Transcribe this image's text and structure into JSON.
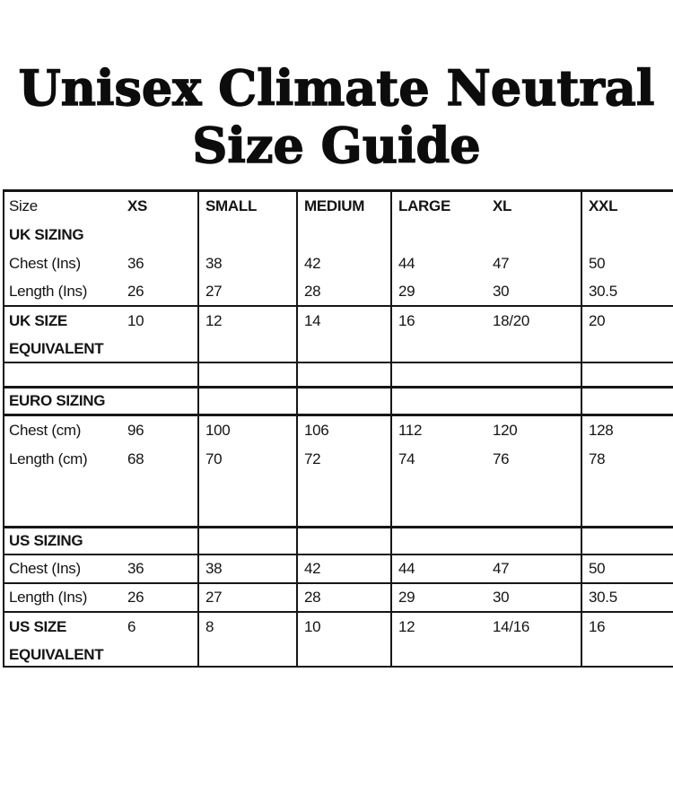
{
  "title": {
    "line1": "Unisex Climate Neutral",
    "line2": "Size Guide"
  },
  "table": {
    "columns": [
      "Size label",
      "XS",
      "SMALL",
      "MEDIUM",
      "LARGE",
      "XL",
      "XXL"
    ],
    "rows": [
      {
        "l1": "Size",
        "l2": "",
        "v": [
          "XS",
          "SMALL",
          "MEDIUM",
          "LARGE",
          "XL",
          "XXL"
        ]
      },
      {
        "l1": "UK SIZING",
        "l2": "",
        "v": [
          "",
          "",
          "",
          "",
          "",
          ""
        ]
      },
      {
        "l1": "Chest (Ins)",
        "l2": "",
        "v": [
          "36",
          "38",
          "42",
          "44",
          "47",
          "50"
        ]
      },
      {
        "l1": "Length (Ins)",
        "l2": "",
        "v": [
          "26",
          "27",
          "28",
          "29",
          "30",
          "30.5"
        ]
      },
      {
        "l1": "UK SIZE",
        "l2": "EQUIVALENT",
        "v": [
          "10",
          "12",
          "14",
          "16",
          "18/20",
          "20"
        ]
      },
      {
        "l1": "",
        "l2": "",
        "v": [
          "",
          "",
          "",
          "",
          "",
          ""
        ]
      },
      {
        "l1": "EURO SIZING",
        "l2": "",
        "v": [
          "",
          "",
          "",
          "",
          "",
          ""
        ]
      },
      {
        "l1": "Chest (cm)",
        "l2": "",
        "v": [
          "96",
          "100",
          "106",
          "112",
          "120",
          "128"
        ]
      },
      {
        "l1": "Length (cm)",
        "l2": "",
        "v": [
          "68",
          "70",
          "72",
          "74",
          "76",
          "78"
        ]
      },
      {
        "l1": "",
        "l2": "",
        "v": [
          "",
          "",
          "",
          "",
          "",
          ""
        ]
      },
      {
        "l1": "US SIZING",
        "l2": "",
        "v": [
          "",
          "",
          "",
          "",
          "",
          ""
        ]
      },
      {
        "l1": "Chest (Ins)",
        "l2": "",
        "v": [
          "36",
          "38",
          "42",
          "44",
          "47",
          "50"
        ]
      },
      {
        "l1": "Length (Ins)",
        "l2": "",
        "v": [
          "26",
          "27",
          "28",
          "29",
          "30",
          "30.5"
        ]
      },
      {
        "l1": "US SIZE",
        "l2": "EQUIVALENT",
        "v": [
          "6",
          "8",
          "10",
          "12",
          "14/16",
          "16"
        ]
      }
    ]
  },
  "colors": {
    "text": "#141414",
    "border": "#161616",
    "background": "#ffffff"
  }
}
